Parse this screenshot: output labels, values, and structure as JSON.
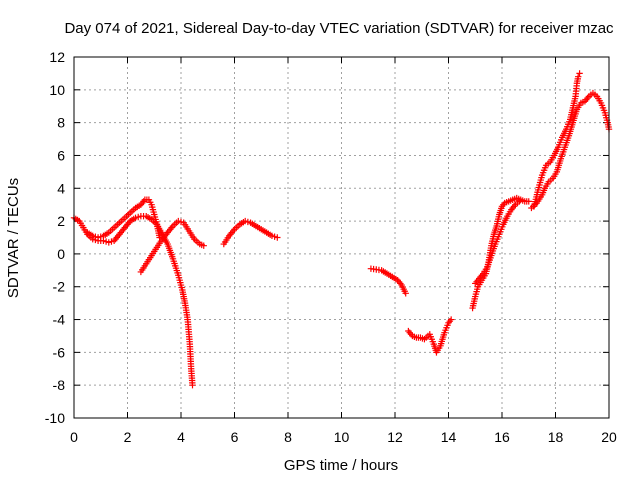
{
  "chart_data": {
    "type": "scatter",
    "title": "Day 074 of 2021, Sidereal Day-to-day VTEC variation (SDTVAR) for receiver mzac",
    "xlabel": "GPS time / hours",
    "ylabel": "SDTVAR / TECUs",
    "xlim": [
      0,
      20
    ],
    "ylim": [
      -10,
      12
    ],
    "xticks": [
      0,
      2,
      4,
      6,
      8,
      10,
      12,
      14,
      16,
      18,
      20
    ],
    "yticks": [
      -10,
      -8,
      -6,
      -4,
      -2,
      0,
      2,
      4,
      6,
      8,
      10,
      12
    ],
    "grid": true,
    "marker": "+",
    "color": "#ff0000",
    "series": [
      {
        "name": "SDTVAR",
        "segments": [
          [
            [
              0.0,
              2.2
            ],
            [
              0.2,
              2.0
            ],
            [
              0.35,
              1.6
            ],
            [
              0.5,
              1.2
            ],
            [
              0.7,
              0.9
            ],
            [
              0.9,
              0.8
            ],
            [
              1.1,
              0.8
            ],
            [
              1.3,
              0.7
            ],
            [
              1.5,
              0.8
            ],
            [
              1.7,
              1.2
            ],
            [
              1.9,
              1.6
            ],
            [
              2.1,
              2.0
            ],
            [
              2.3,
              2.2
            ],
            [
              2.5,
              2.3
            ],
            [
              2.7,
              2.3
            ],
            [
              2.9,
              2.1
            ],
            [
              3.1,
              1.8
            ],
            [
              3.3,
              1.2
            ],
            [
              3.5,
              0.6
            ],
            [
              3.7,
              -0.3
            ],
            [
              3.9,
              -1.3
            ],
            [
              4.05,
              -2.2
            ],
            [
              4.15,
              -3.0
            ],
            [
              4.25,
              -4.0
            ],
            [
              4.33,
              -5.5
            ],
            [
              4.38,
              -7.0
            ],
            [
              4.43,
              -8.0
            ]
          ],
          [
            [
              0.5,
              1.3
            ],
            [
              0.7,
              1.1
            ],
            [
              0.9,
              1.0
            ],
            [
              1.1,
              1.1
            ],
            [
              1.3,
              1.3
            ],
            [
              1.5,
              1.6
            ],
            [
              1.7,
              1.9
            ],
            [
              1.9,
              2.2
            ],
            [
              2.1,
              2.5
            ],
            [
              2.3,
              2.8
            ],
            [
              2.5,
              3.0
            ],
            [
              2.65,
              3.3
            ],
            [
              2.8,
              3.3
            ],
            [
              2.9,
              3.0
            ],
            [
              3.0,
              2.4
            ],
            [
              3.1,
              1.8
            ],
            [
              3.2,
              1.0
            ]
          ],
          [
            [
              2.5,
              -1.1
            ],
            [
              2.7,
              -0.6
            ],
            [
              2.9,
              -0.1
            ],
            [
              3.1,
              0.4
            ],
            [
              3.3,
              0.9
            ],
            [
              3.5,
              1.3
            ],
            [
              3.7,
              1.7
            ],
            [
              3.9,
              2.0
            ],
            [
              4.1,
              1.9
            ],
            [
              4.3,
              1.4
            ],
            [
              4.5,
              0.9
            ],
            [
              4.7,
              0.6
            ],
            [
              4.85,
              0.5
            ]
          ],
          [
            [
              5.6,
              0.6
            ],
            [
              5.8,
              1.1
            ],
            [
              6.0,
              1.5
            ],
            [
              6.2,
              1.8
            ],
            [
              6.4,
              2.0
            ],
            [
              6.6,
              1.9
            ],
            [
              6.8,
              1.7
            ],
            [
              7.0,
              1.5
            ],
            [
              7.2,
              1.3
            ],
            [
              7.4,
              1.1
            ],
            [
              7.6,
              1.0
            ]
          ],
          [
            [
              11.1,
              -0.9
            ],
            [
              11.3,
              -0.95
            ],
            [
              11.5,
              -1.0
            ],
            [
              11.7,
              -1.2
            ],
            [
              11.9,
              -1.4
            ],
            [
              12.1,
              -1.6
            ],
            [
              12.25,
              -1.9
            ],
            [
              12.4,
              -2.4
            ]
          ],
          [
            [
              12.5,
              -4.7
            ],
            [
              12.65,
              -5.0
            ],
            [
              12.8,
              -5.1
            ],
            [
              12.95,
              -5.1
            ],
            [
              13.1,
              -5.2
            ],
            [
              13.3,
              -4.9
            ],
            [
              13.45,
              -5.5
            ],
            [
              13.55,
              -6.0
            ],
            [
              13.7,
              -5.6
            ],
            [
              13.85,
              -4.8
            ],
            [
              14.0,
              -4.2
            ],
            [
              14.1,
              -4.0
            ]
          ],
          [
            [
              14.9,
              -3.3
            ],
            [
              15.0,
              -2.6
            ],
            [
              15.1,
              -2.0
            ],
            [
              15.25,
              -1.6
            ],
            [
              15.4,
              -1.2
            ],
            [
              15.5,
              -0.5
            ],
            [
              15.6,
              0.5
            ],
            [
              15.7,
              1.2
            ],
            [
              15.8,
              1.7
            ],
            [
              15.9,
              2.4
            ],
            [
              16.0,
              2.9
            ],
            [
              16.1,
              3.1
            ],
            [
              16.25,
              3.2
            ],
            [
              16.4,
              3.3
            ],
            [
              16.55,
              3.4
            ],
            [
              16.7,
              3.3
            ],
            [
              16.85,
              3.2
            ],
            [
              17.0,
              3.2
            ]
          ],
          [
            [
              15.0,
              -1.8
            ],
            [
              15.15,
              -1.5
            ],
            [
              15.3,
              -1.2
            ],
            [
              15.45,
              -0.8
            ],
            [
              15.6,
              -0.1
            ],
            [
              15.75,
              0.6
            ],
            [
              15.9,
              1.2
            ],
            [
              16.05,
              1.8
            ],
            [
              16.2,
              2.3
            ],
            [
              16.35,
              2.7
            ],
            [
              16.5,
              3.0
            ],
            [
              16.65,
              3.2
            ]
          ],
          [
            [
              17.1,
              2.8
            ],
            [
              17.3,
              3.1
            ],
            [
              17.5,
              3.6
            ],
            [
              17.6,
              4.0
            ],
            [
              17.75,
              4.4
            ],
            [
              17.9,
              4.6
            ],
            [
              18.05,
              5.0
            ],
            [
              18.2,
              5.8
            ],
            [
              18.35,
              6.5
            ],
            [
              18.5,
              7.2
            ],
            [
              18.65,
              8.0
            ],
            [
              18.8,
              8.8
            ],
            [
              18.95,
              9.2
            ],
            [
              19.1,
              9.3
            ],
            [
              19.25,
              9.6
            ],
            [
              19.4,
              9.8
            ],
            [
              19.55,
              9.6
            ],
            [
              19.7,
              9.2
            ],
            [
              19.85,
              8.6
            ],
            [
              19.95,
              8.0
            ],
            [
              20.0,
              7.6
            ]
          ],
          [
            [
              17.2,
              2.9
            ],
            [
              17.35,
              3.9
            ],
            [
              17.5,
              4.8
            ],
            [
              17.65,
              5.4
            ],
            [
              17.8,
              5.6
            ],
            [
              17.95,
              6.0
            ],
            [
              18.1,
              6.5
            ],
            [
              18.25,
              7.1
            ],
            [
              18.4,
              7.6
            ],
            [
              18.55,
              8.2
            ],
            [
              18.65,
              8.9
            ],
            [
              18.75,
              9.6
            ],
            [
              18.8,
              10.4
            ],
            [
              18.85,
              10.8
            ],
            [
              18.9,
              11.0
            ]
          ]
        ]
      }
    ]
  }
}
